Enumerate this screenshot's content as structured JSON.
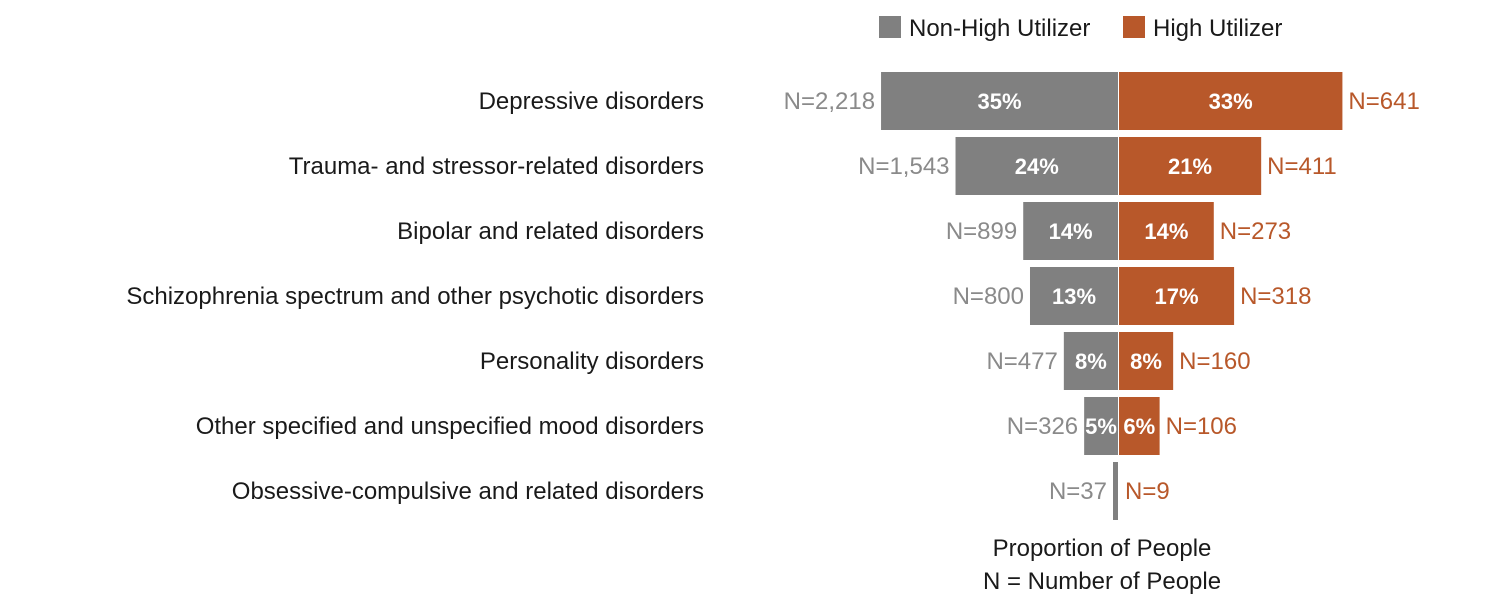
{
  "chart_data": {
    "type": "bar",
    "orientation": "diverging-horizontal",
    "categories": [
      "Depressive disorders",
      "Trauma- and stressor-related disorders",
      "Bipolar and related disorders",
      "Schizophrenia spectrum and other psychotic disorders",
      "Personality disorders",
      "Other specified and unspecified mood disorders",
      "Obsessive-compulsive and related disorders"
    ],
    "series": [
      {
        "name": "Non-High Utilizer",
        "color": "#808080",
        "values": [
          35,
          24,
          14,
          13,
          8,
          5,
          0.5
        ],
        "labels": [
          "35%",
          "24%",
          "14%",
          "13%",
          "8%",
          "5%",
          ""
        ],
        "n_labels": [
          "N=2,218",
          "N=1,543",
          "N=899",
          "N=800",
          "N=477",
          "N=326",
          "N=37"
        ]
      },
      {
        "name": "High Utilizer",
        "color": "#b8582a",
        "values": [
          33,
          21,
          14,
          17,
          8,
          6,
          0
        ],
        "labels": [
          "33%",
          "21%",
          "14%",
          "17%",
          "8%",
          "6%",
          ""
        ],
        "n_labels": [
          "N=641",
          "N=411",
          "N=273",
          "N=318",
          "N=160",
          "N=106",
          "N=9"
        ]
      }
    ],
    "xlabel": "Proportion of People",
    "xlabel2": "N = Number of People",
    "legend": "top"
  }
}
